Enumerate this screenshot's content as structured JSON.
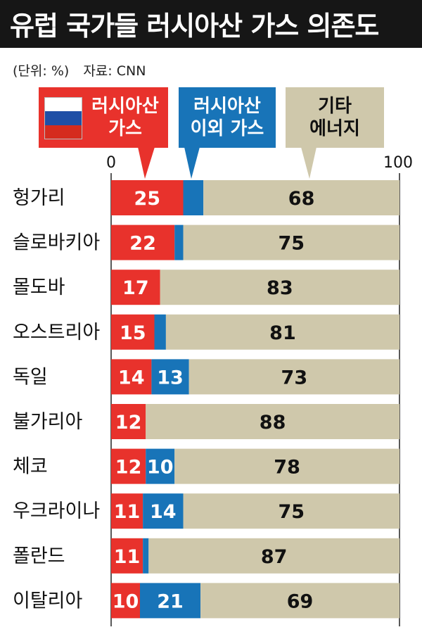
{
  "title": "유럽 국가들 러시아산 가스 의존도",
  "unit_text": "(단위: %)",
  "source_text": "자료: CNN",
  "legend": {
    "russian_gas": "러시아산 가스",
    "russian_gas_lines": [
      "러시아산",
      "가스"
    ],
    "other_gas_lines": [
      "러시아산",
      "이외 가스"
    ],
    "other_energy_lines": [
      "기타",
      "에너지"
    ]
  },
  "colors": {
    "russian_gas": "#e8322c",
    "other_gas": "#1874b8",
    "other_energy": "#cfc8ab",
    "title_bg": "#161616"
  },
  "icons": {
    "flag": "russia-flag-icon"
  },
  "chart_data": {
    "type": "bar",
    "stacked": true,
    "orientation": "horizontal",
    "title": "유럽 국가들 러시아산 가스 의존도",
    "xlim": [
      0,
      100
    ],
    "x_ticks": [
      "0",
      "100"
    ],
    "categories": [
      "헝가리",
      "슬로바키아",
      "몰도바",
      "오스트리아",
      "독일",
      "불가리아",
      "체코",
      "우크라이나",
      "폴란드",
      "이탈리아"
    ],
    "series": [
      {
        "name": "러시아산 가스",
        "values": [
          25,
          22,
          17,
          15,
          14,
          12,
          12,
          11,
          11,
          10
        ]
      },
      {
        "name": "러시아산 이외 가스",
        "values": [
          7,
          3,
          null,
          4,
          13,
          null,
          10,
          14,
          2,
          21
        ]
      },
      {
        "name": "기타 에너지",
        "values": [
          68,
          75,
          83,
          81,
          73,
          88,
          78,
          75,
          87,
          69
        ]
      }
    ],
    "legend_position": "top"
  }
}
